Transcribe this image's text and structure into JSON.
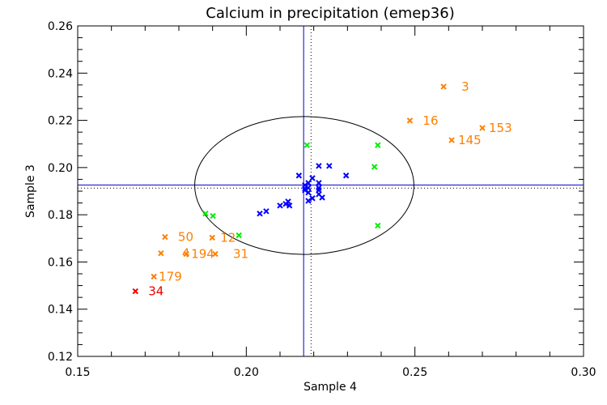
{
  "chart_data": {
    "type": "scatter",
    "title": "Calcium in precipitation (emep36)",
    "xlabel": "Sample 4",
    "ylabel": "Sample 3",
    "xlim": [
      0.15,
      0.3
    ],
    "ylim": [
      0.12,
      0.26
    ],
    "xticks": [
      0.15,
      0.2,
      0.25,
      0.3
    ],
    "xtick_labels": [
      "0.15",
      "0.20",
      "0.25",
      "0.30"
    ],
    "yticks": [
      0.12,
      0.14,
      0.16,
      0.18,
      0.2,
      0.22,
      0.24,
      0.26
    ],
    "ytick_labels": [
      "0.12",
      "0.14",
      "0.16",
      "0.18",
      "0.20",
      "0.22",
      "0.24",
      "0.26"
    ],
    "grid": false,
    "reference_lines": {
      "vertical_solid": 0.217,
      "vertical_dotted": 0.2192,
      "horizontal_solid": 0.1926,
      "horizontal_dotted": 0.1913,
      "color": "#0000cc"
    },
    "ellipse": {
      "cx": 0.2172,
      "cy": 0.1924,
      "rx": 0.0325,
      "ry": 0.0292,
      "color": "#000000"
    },
    "series": [
      {
        "name": "blue",
        "color": "#0000ff",
        "points": [
          [
            0.2215,
            0.2007
          ],
          [
            0.2246,
            0.2007
          ],
          [
            0.2156,
            0.1966
          ],
          [
            0.2296,
            0.1966
          ],
          [
            0.2196,
            0.1955
          ],
          [
            0.2215,
            0.1935
          ],
          [
            0.2184,
            0.1935
          ],
          [
            0.2174,
            0.1925
          ],
          [
            0.2174,
            0.1911
          ],
          [
            0.2174,
            0.1904
          ],
          [
            0.2215,
            0.1914
          ],
          [
            0.2215,
            0.1904
          ],
          [
            0.2184,
            0.1914
          ],
          [
            0.2184,
            0.1894
          ],
          [
            0.2215,
            0.1887
          ],
          [
            0.2225,
            0.1873
          ],
          [
            0.2196,
            0.187
          ],
          [
            0.2184,
            0.1859
          ],
          [
            0.2124,
            0.1856
          ],
          [
            0.2128,
            0.1839
          ],
          [
            0.2117,
            0.1846
          ],
          [
            0.21,
            0.1839
          ],
          [
            0.2059,
            0.1815
          ],
          [
            0.204,
            0.1805
          ]
        ]
      },
      {
        "name": "green",
        "color": "#00ee00",
        "points": [
          [
            0.218,
            0.2095
          ],
          [
            0.239,
            0.2095
          ],
          [
            0.238,
            0.2003
          ],
          [
            0.1879,
            0.1805
          ],
          [
            0.1901,
            0.1795
          ],
          [
            0.239,
            0.1754
          ],
          [
            0.1978,
            0.1713
          ]
        ]
      },
      {
        "name": "orange",
        "color": "#ff7f00",
        "points": [
          {
            "x": 0.2585,
            "y": 0.2343,
            "label": "3"
          },
          {
            "x": 0.2485,
            "y": 0.2199,
            "label": "16"
          },
          {
            "x": 0.27,
            "y": 0.2168,
            "label": "153"
          },
          {
            "x": 0.2609,
            "y": 0.2116,
            "label": "145"
          },
          {
            "x": 0.1759,
            "y": 0.1706,
            "label": "50"
          },
          {
            "x": 0.1899,
            "y": 0.1703,
            "label": "12"
          },
          {
            "x": 0.1747,
            "y": 0.1637,
            "label": "4"
          },
          {
            "x": 0.1822,
            "y": 0.1634,
            "label": "194"
          },
          {
            "x": 0.1908,
            "y": 0.1634,
            "label": "31"
          },
          {
            "x": 0.1726,
            "y": 0.1538,
            "label": "179"
          }
        ]
      },
      {
        "name": "red",
        "color": "#ee0000",
        "points": [
          {
            "x": 0.1671,
            "y": 0.1476,
            "label": "34"
          }
        ]
      }
    ]
  }
}
